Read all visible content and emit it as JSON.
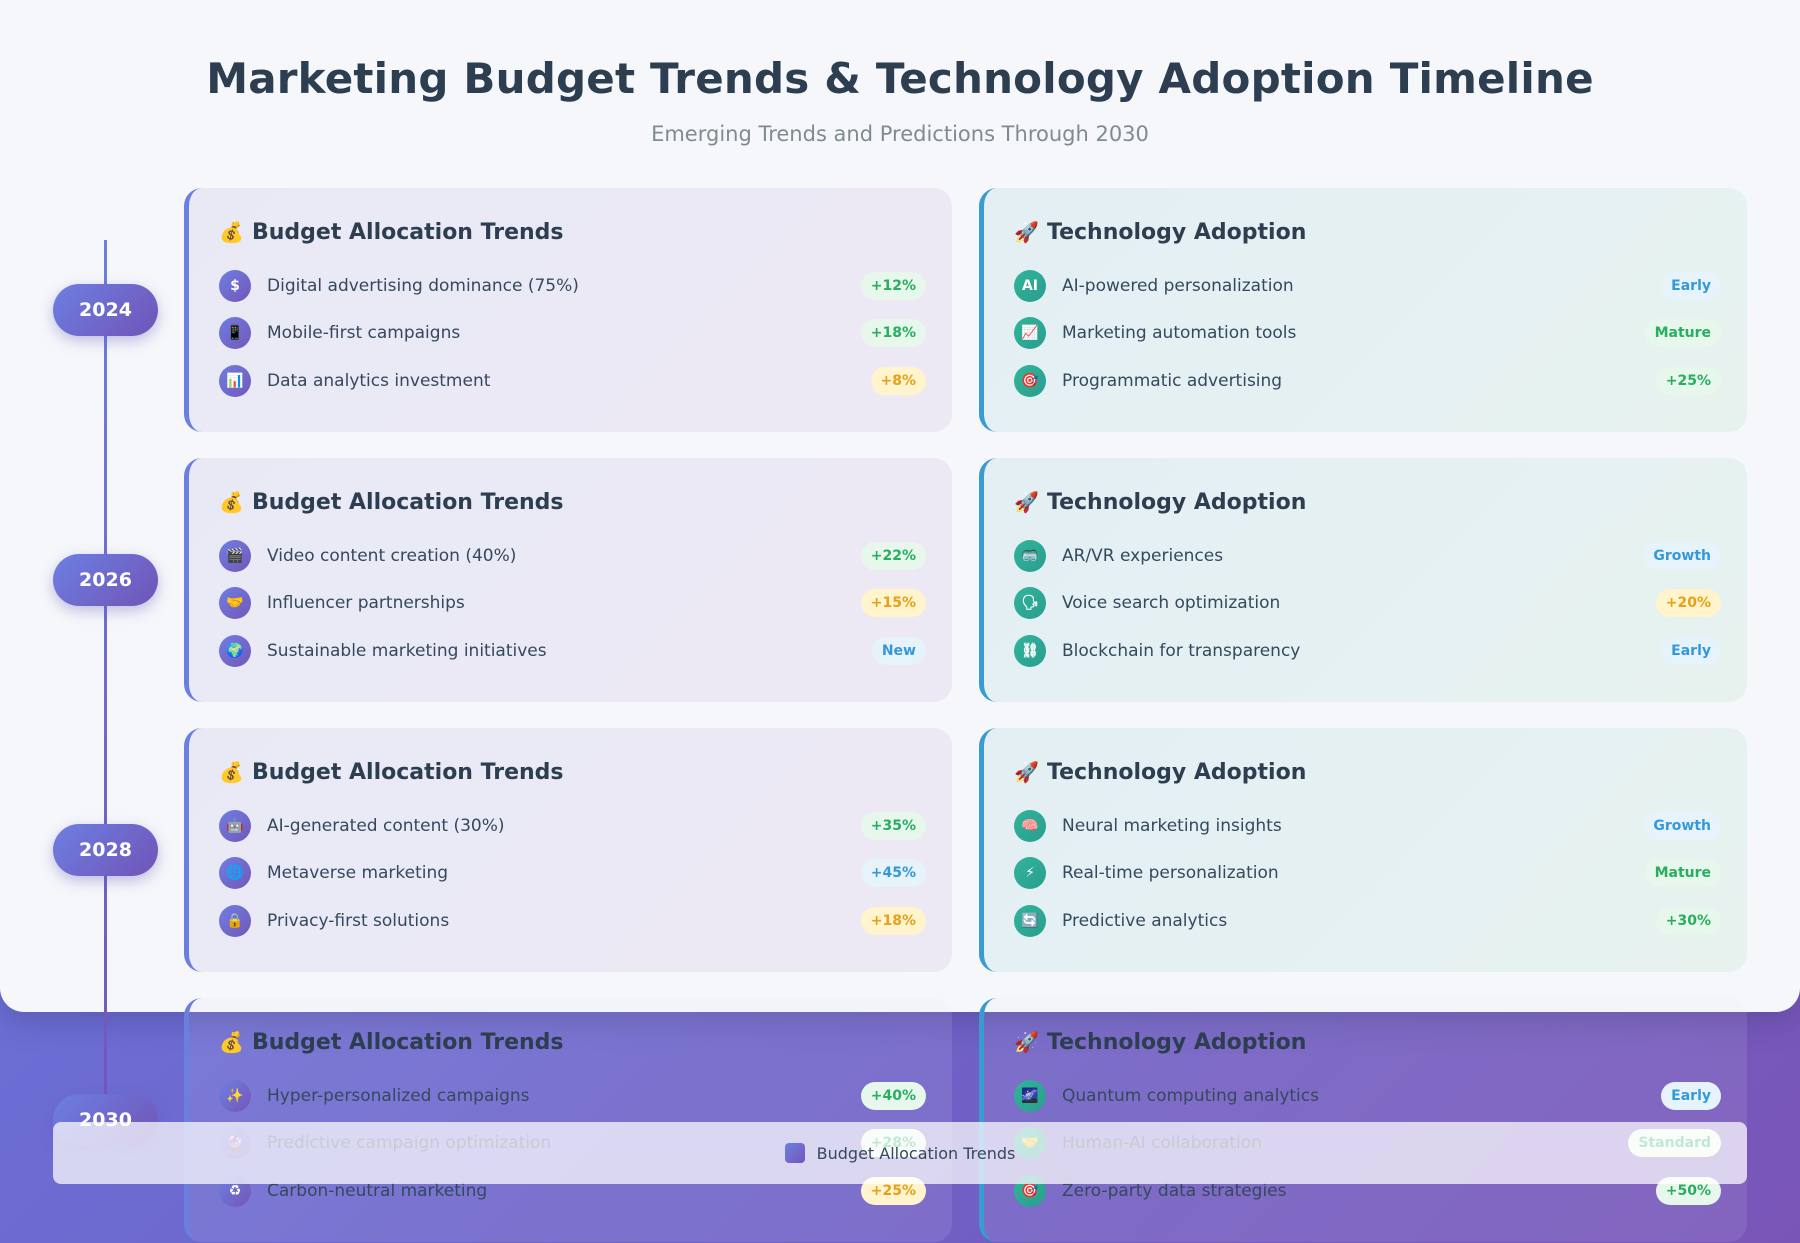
{
  "header": {
    "title": "Marketing Budget Trends & Technology Adoption Timeline",
    "subtitle": "Emerging Trends and Predictions Through 2030"
  },
  "legend": {
    "label": "Budget Allocation Trends"
  },
  "years": [
    {
      "year": "2024",
      "budget": {
        "title": "Budget Allocation Trends",
        "icon": "💰",
        "items": [
          {
            "icon": "$",
            "label": "Digital advertising dominance (75%)",
            "badge": "+12%",
            "tone": "green"
          },
          {
            "icon": "📱",
            "label": "Mobile-first campaigns",
            "badge": "+18%",
            "tone": "green"
          },
          {
            "icon": "📊",
            "label": "Data analytics investment",
            "badge": "+8%",
            "tone": "yellow"
          }
        ]
      },
      "tech": {
        "title": "Technology Adoption",
        "icon": "🚀",
        "items": [
          {
            "icon": "AI",
            "label": "AI-powered personalization",
            "badge": "Early",
            "tone": "blue"
          },
          {
            "icon": "📈",
            "label": "Marketing automation tools",
            "badge": "Mature",
            "tone": "green"
          },
          {
            "icon": "🎯",
            "label": "Programmatic advertising",
            "badge": "+25%",
            "tone": "green"
          }
        ]
      }
    },
    {
      "year": "2026",
      "budget": {
        "title": "Budget Allocation Trends",
        "icon": "💰",
        "items": [
          {
            "icon": "🎬",
            "label": "Video content creation (40%)",
            "badge": "+22%",
            "tone": "green"
          },
          {
            "icon": "🤝",
            "label": "Influencer partnerships",
            "badge": "+15%",
            "tone": "yellow"
          },
          {
            "icon": "🌍",
            "label": "Sustainable marketing initiatives",
            "badge": "New",
            "tone": "blue"
          }
        ]
      },
      "tech": {
        "title": "Technology Adoption",
        "icon": "🚀",
        "items": [
          {
            "icon": "🥽",
            "label": "AR/VR experiences",
            "badge": "Growth",
            "tone": "blue"
          },
          {
            "icon": "🗣",
            "label": "Voice search optimization",
            "badge": "+20%",
            "tone": "yellow"
          },
          {
            "icon": "⛓",
            "label": "Blockchain for transparency",
            "badge": "Early",
            "tone": "blue"
          }
        ]
      }
    },
    {
      "year": "2028",
      "budget": {
        "title": "Budget Allocation Trends",
        "icon": "💰",
        "items": [
          {
            "icon": "🤖",
            "label": "AI-generated content (30%)",
            "badge": "+35%",
            "tone": "green"
          },
          {
            "icon": "🌐",
            "label": "Metaverse marketing",
            "badge": "+45%",
            "tone": "blue"
          },
          {
            "icon": "🔒",
            "label": "Privacy-first solutions",
            "badge": "+18%",
            "tone": "yellow"
          }
        ]
      },
      "tech": {
        "title": "Technology Adoption",
        "icon": "🚀",
        "items": [
          {
            "icon": "🧠",
            "label": "Neural marketing insights",
            "badge": "Growth",
            "tone": "blue"
          },
          {
            "icon": "⚡",
            "label": "Real-time personalization",
            "badge": "Mature",
            "tone": "green"
          },
          {
            "icon": "🔄",
            "label": "Predictive analytics",
            "badge": "+30%",
            "tone": "green"
          }
        ]
      }
    },
    {
      "year": "2030",
      "budget": {
        "title": "Budget Allocation Trends",
        "icon": "💰",
        "items": [
          {
            "icon": "✨",
            "label": "Hyper-personalized campaigns",
            "badge": "+40%",
            "tone": "green"
          },
          {
            "icon": "🔮",
            "label": "Predictive campaign optimization",
            "badge": "+28%",
            "tone": "green"
          },
          {
            "icon": "♻",
            "label": "Carbon-neutral marketing",
            "badge": "+25%",
            "tone": "yellow"
          }
        ]
      },
      "tech": {
        "title": "Technology Adoption",
        "icon": "🚀",
        "items": [
          {
            "icon": "🌌",
            "label": "Quantum computing analytics",
            "badge": "Early",
            "tone": "blue"
          },
          {
            "icon": "🤝",
            "label": "Human-AI collaboration",
            "badge": "Standard",
            "tone": "green"
          },
          {
            "icon": "🎯",
            "label": "Zero-party data strategies",
            "badge": "+50%",
            "tone": "green"
          }
        ]
      }
    }
  ]
}
